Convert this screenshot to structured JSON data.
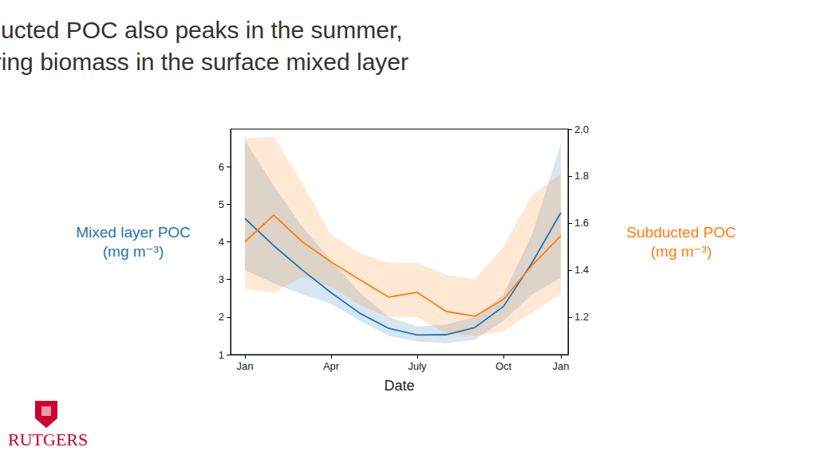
{
  "chart_data": {
    "type": "line",
    "title": "Subducted POC also peaks in the summer,\nmirroring biomass in the surface mixed layer",
    "xlabel": "Date",
    "ylabel": "Mixed layer POC\n(mg m⁻³)",
    "y2label": "Subducted POC\n(mg m⁻³)",
    "x": [
      0,
      1,
      2,
      3,
      4,
      5,
      6,
      7,
      8,
      9,
      10,
      11
    ],
    "xlim": [
      -0.5,
      11.25
    ],
    "xticks": [
      {
        "value": 0,
        "label": "Jan"
      },
      {
        "value": 3,
        "label": "Apr"
      },
      {
        "value": 6,
        "label": "July"
      },
      {
        "value": 9,
        "label": "Oct"
      },
      {
        "value": 11,
        "label": "Jan"
      }
    ],
    "ylim": [
      1,
      7
    ],
    "yticks": [
      1,
      2,
      3,
      4,
      5,
      6
    ],
    "y2lim": [
      1.04,
      2.0
    ],
    "y2ticks": [
      1.2,
      1.4,
      1.6,
      1.8,
      {
        "value": 2,
        "label": "2.0"
      }
    ],
    "grid": false,
    "series": [
      {
        "color": "#1f77b4",
        "values": [
          4.62,
          3.9,
          3.25,
          2.65,
          2.1,
          1.7,
          1.52,
          1.53,
          1.72,
          2.28,
          3.45,
          4.78
        ],
        "lower": [
          3.25,
          2.9,
          2.6,
          2.35,
          1.9,
          1.5,
          1.35,
          1.3,
          1.4,
          1.9,
          2.6,
          3.05
        ],
        "upper": [
          6.7,
          5.5,
          4.4,
          3.5,
          2.65,
          2.0,
          1.75,
          1.8,
          2.0,
          2.6,
          4.2,
          6.6
        ]
      },
      {
        "color": "#ff7f0e",
        "axis": "y2",
        "values": [
          1.52,
          1.634,
          1.52,
          1.434,
          1.359,
          1.285,
          1.305,
          1.224,
          1.203,
          1.275,
          1.42,
          1.546
        ],
        "lower": [
          1.32,
          1.305,
          1.37,
          1.33,
          1.25,
          1.2,
          1.2,
          1.13,
          1.12,
          1.14,
          1.22,
          1.3
        ],
        "upper": [
          1.96,
          1.966,
          1.77,
          1.55,
          1.47,
          1.43,
          1.43,
          1.38,
          1.36,
          1.5,
          1.72,
          1.81
        ]
      }
    ]
  },
  "logo": "RUTGERS"
}
